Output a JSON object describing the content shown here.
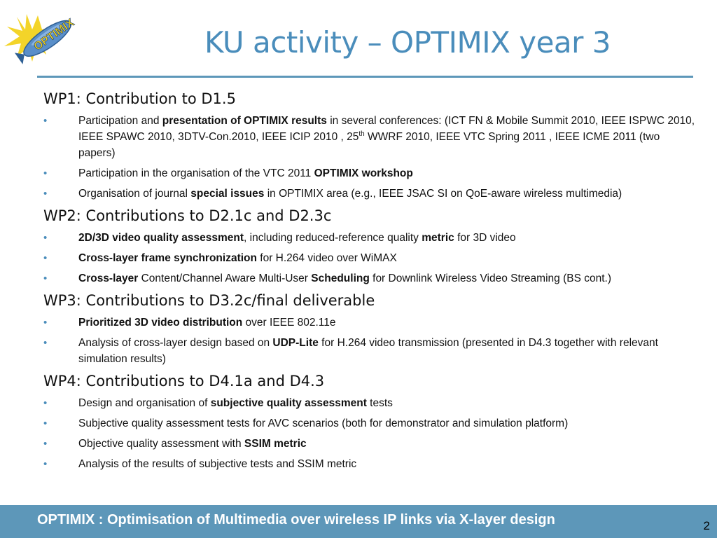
{
  "logo": {
    "text": "OPTIMIX"
  },
  "title": "KU activity – OPTIMIX year 3",
  "sections": [
    {
      "heading": "WP1: Contribution to D1.5",
      "items": [
        [
          {
            "t": "Participation and "
          },
          {
            "t": "presentation of OPTIMIX results",
            "b": true
          },
          {
            "t": "  in several  conferences:  (ICT FN & Mobile Summit 2010, IEEE ISPWC 2010,  IEEE SPAWC 2010,  3DTV-Con.2010, IEEE ICIP 2010 , 25"
          },
          {
            "t": "th",
            "sup": true
          },
          {
            "t": " WWRF 2010, IEEE VTC Spring 2011 , IEEE ICME 2011  (two papers)"
          }
        ],
        [
          {
            "t": "Participation in the organisation of the VTC 2011 "
          },
          {
            "t": "OPTIMIX workshop",
            "b": true
          }
        ],
        [
          {
            "t": "Organisation of journal "
          },
          {
            "t": "special issues",
            "b": true
          },
          {
            "t": " in OPTIMIX area (e.g., IEEE JSAC SI on QoE-aware wireless multimedia)"
          }
        ]
      ]
    },
    {
      "heading": "WP2: Contributions to D2.1c and D2.3c",
      "items": [
        [
          {
            "t": "2D/3D video quality assessment",
            "b": true
          },
          {
            "t": ", including reduced-reference quality "
          },
          {
            "t": "metric",
            "b": true
          },
          {
            "t": " for 3D  video"
          }
        ],
        [
          {
            "t": "Cross-layer frame synchronization",
            "b": true
          },
          {
            "t": " for H.264 video over WiMAX"
          }
        ],
        [
          {
            "t": "Cross-layer",
            "b": true
          },
          {
            "t": " Content/Channel Aware Multi-User "
          },
          {
            "t": "Scheduling",
            "b": true
          },
          {
            "t": " for Downlink Wireless Video Streaming (BS cont.)"
          }
        ]
      ]
    },
    {
      "heading": "WP3: Contributions to D3.2c/final deliverable",
      "items": [
        [
          {
            "t": "Prioritized 3D video distribution",
            "b": true
          },
          {
            "t": " over IEEE 802.11e"
          }
        ],
        [
          {
            "t": "Analysis of cross-layer design based on "
          },
          {
            "t": "UDP-Lite",
            "b": true
          },
          {
            "t": " for H.264 video transmission (presented in D4.3 together with relevant simulation results)"
          }
        ]
      ]
    },
    {
      "heading": "WP4: Contributions to  D4.1a  and D4.3",
      "items": [
        [
          {
            "t": "Design and organisation of  "
          },
          {
            "t": "subjective quality assessment",
            "b": true
          },
          {
            "t": " tests"
          }
        ],
        [
          {
            "t": "Subjective quality assessment tests for  AVC scenarios (both for demonstrator and simulation platform)"
          }
        ],
        [
          {
            "t": "Objective quality assessment  with "
          },
          {
            "t": "SSIM metric",
            "b": true
          }
        ],
        [
          {
            "t": "Analysis  of the results of subjective tests and SSIM metric"
          }
        ]
      ]
    }
  ],
  "footer": {
    "text": "OPTIMIX : Optimisation of Multimedia over wireless IP links via X-layer design",
    "page_number": "2"
  },
  "colors": {
    "accent": "#4a8dbb",
    "footer_bg": "#5d97b9",
    "logo_yellow": "#f2d21d"
  }
}
